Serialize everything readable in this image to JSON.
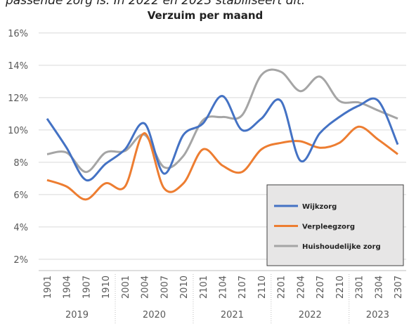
{
  "caption": "passende zorg is. In 2022 en 2023 stabiliseert dit.",
  "chart_data": {
    "type": "line",
    "title": "Verzuim per maand",
    "categories": [
      "1901",
      "1904",
      "1907",
      "1910",
      "2001",
      "2004",
      "2007",
      "2010",
      "2101",
      "2104",
      "2107",
      "2110",
      "2201",
      "2204",
      "2207",
      "2210",
      "2301",
      "2304",
      "2307"
    ],
    "years": [
      "2019",
      "2020",
      "2021",
      "2022",
      "2023"
    ],
    "series": [
      {
        "name": "Wijkzorg",
        "color": "#4472c4",
        "values": [
          10.7,
          8.9,
          6.9,
          7.9,
          8.8,
          10.4,
          7.3,
          9.7,
          10.4,
          12.1,
          10.0,
          10.7,
          11.8,
          8.1,
          9.8,
          10.8,
          11.5,
          11.8,
          9.1
        ]
      },
      {
        "name": "Verpleegzorg",
        "color": "#ed7d31",
        "values": [
          6.9,
          6.5,
          5.7,
          6.7,
          6.5,
          9.8,
          6.4,
          6.7,
          8.8,
          7.8,
          7.4,
          8.8,
          9.2,
          9.3,
          8.9,
          9.2,
          10.2,
          9.4,
          8.5
        ]
      },
      {
        "name": "Huishoudelijke zorg",
        "color": "#a5a5a5",
        "values": [
          8.5,
          8.6,
          7.4,
          8.6,
          8.7,
          9.7,
          7.7,
          8.4,
          10.6,
          10.8,
          10.9,
          13.4,
          13.6,
          12.4,
          13.3,
          11.8,
          11.7,
          11.2,
          10.7
        ]
      }
    ],
    "ylim": [
      1.3,
      16.3
    ],
    "yticks": [
      {
        "value": 2,
        "label": "2%"
      },
      {
        "value": 4,
        "label": "4%"
      },
      {
        "value": 6,
        "label": "6%"
      },
      {
        "value": 8,
        "label": "8%"
      },
      {
        "value": 10,
        "label": "10%"
      },
      {
        "value": 12,
        "label": "12%"
      },
      {
        "value": 14,
        "label": "14%"
      },
      {
        "value": 16,
        "label": "16%"
      }
    ],
    "grid": true,
    "legend": "lower right"
  }
}
